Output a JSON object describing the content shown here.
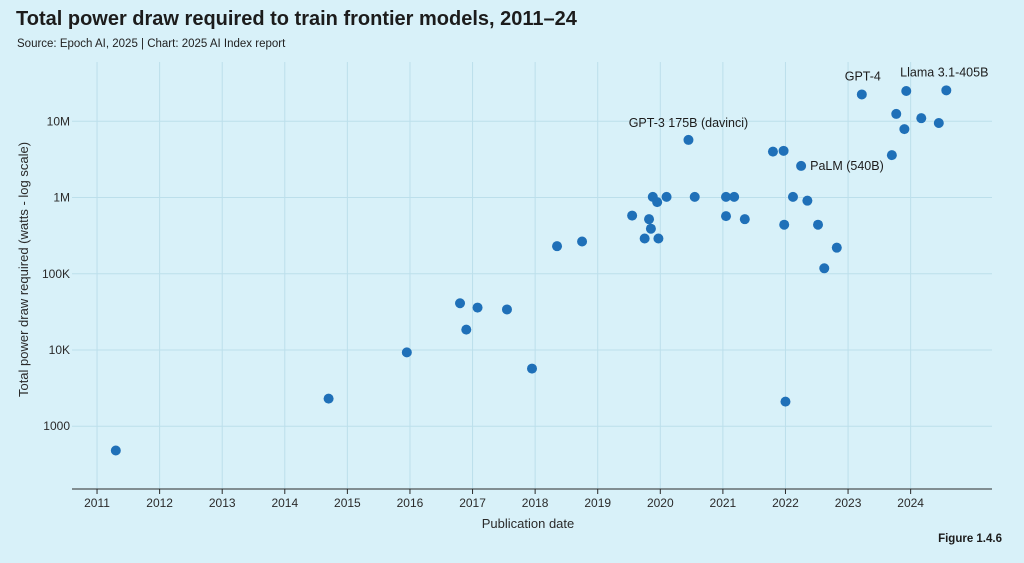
{
  "title": "Total power draw required to train frontier models, 2011–24",
  "source": "Source: Epoch AI, 2025 | Chart: 2025 AI Index report",
  "figure": "Figure 1.4.6",
  "colors": {
    "background": "#d8f1f9",
    "point": "#1f70b8",
    "grid": "#bcdfeb",
    "axis": "#2a2a2a"
  },
  "chart_data": {
    "type": "scatter",
    "title": "Total power draw required to train frontier models, 2011–24",
    "xlabel": "Publication date",
    "ylabel": "Total power draw required (watts - log scale)",
    "yscale": "log",
    "xlim": [
      2010.6,
      2025.3
    ],
    "ylim": [
      150,
      60000000
    ],
    "x_ticks": [
      2011,
      2012,
      2013,
      2014,
      2015,
      2016,
      2017,
      2018,
      2019,
      2020,
      2021,
      2022,
      2023,
      2024
    ],
    "x_tick_labels": [
      "2011",
      "2012",
      "2013",
      "2014",
      "2015",
      "2016",
      "2017",
      "2018",
      "2019",
      "2020",
      "2021",
      "2022",
      "2023",
      "2024"
    ],
    "y_ticks": [
      1000,
      10000,
      100000,
      1000000,
      10000000
    ],
    "y_tick_labels": [
      "1000",
      "10K",
      "100K",
      "1M",
      "10M"
    ],
    "grid": true,
    "points": [
      {
        "x": 2011.3,
        "y": 480
      },
      {
        "x": 2014.7,
        "y": 2300
      },
      {
        "x": 2015.95,
        "y": 9300
      },
      {
        "x": 2016.8,
        "y": 41000
      },
      {
        "x": 2016.9,
        "y": 18500
      },
      {
        "x": 2017.08,
        "y": 36000
      },
      {
        "x": 2017.55,
        "y": 34000
      },
      {
        "x": 2017.95,
        "y": 5700
      },
      {
        "x": 2018.35,
        "y": 230000
      },
      {
        "x": 2018.75,
        "y": 265000
      },
      {
        "x": 2019.55,
        "y": 580000
      },
      {
        "x": 2019.75,
        "y": 290000
      },
      {
        "x": 2019.82,
        "y": 520000
      },
      {
        "x": 2019.85,
        "y": 390000
      },
      {
        "x": 2019.88,
        "y": 1020000
      },
      {
        "x": 2019.95,
        "y": 870000
      },
      {
        "x": 2019.97,
        "y": 290000
      },
      {
        "x": 2020.1,
        "y": 1020000
      },
      {
        "x": 2020.45,
        "y": 5700000,
        "label": "GPT-3 175B (davinci)"
      },
      {
        "x": 2020.55,
        "y": 1020000
      },
      {
        "x": 2021.05,
        "y": 1020000
      },
      {
        "x": 2021.05,
        "y": 570000
      },
      {
        "x": 2021.18,
        "y": 1020000
      },
      {
        "x": 2021.35,
        "y": 520000
      },
      {
        "x": 2021.8,
        "y": 4000000
      },
      {
        "x": 2021.97,
        "y": 4100000
      },
      {
        "x": 2021.98,
        "y": 440000
      },
      {
        "x": 2022.0,
        "y": 2100
      },
      {
        "x": 2022.12,
        "y": 1020000
      },
      {
        "x": 2022.25,
        "y": 2600000,
        "label": "PaLM (540B)"
      },
      {
        "x": 2022.35,
        "y": 910000
      },
      {
        "x": 2022.52,
        "y": 440000
      },
      {
        "x": 2022.62,
        "y": 118000
      },
      {
        "x": 2022.82,
        "y": 220000
      },
      {
        "x": 2023.22,
        "y": 22500000,
        "label": "GPT-4"
      },
      {
        "x": 2023.7,
        "y": 3600000
      },
      {
        "x": 2023.77,
        "y": 12500000
      },
      {
        "x": 2023.9,
        "y": 7900000
      },
      {
        "x": 2023.93,
        "y": 25000000
      },
      {
        "x": 2024.17,
        "y": 11000000
      },
      {
        "x": 2024.45,
        "y": 9500000
      },
      {
        "x": 2024.57,
        "y": 25500000,
        "label": "Llama 3.1-405B"
      }
    ]
  }
}
